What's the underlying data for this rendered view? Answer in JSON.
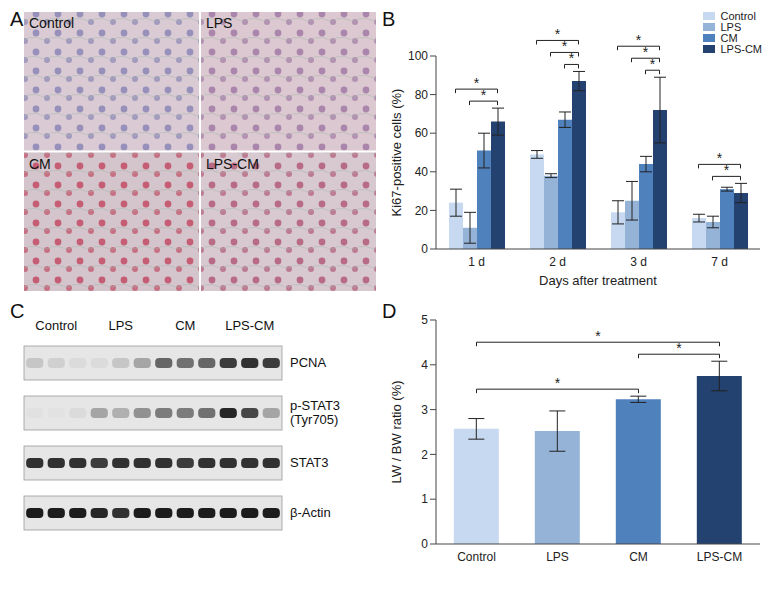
{
  "chart_data": [
    {
      "panel": "B",
      "type": "bar",
      "categories": [
        "1 d",
        "2 d",
        "3 d",
        "7 d"
      ],
      "x_label": "Days after treatment",
      "y_label": "Ki67-positive cells (%)",
      "ylim": [
        0,
        100
      ],
      "yticks": [
        0,
        20,
        40,
        60,
        80,
        100
      ],
      "legend": "top-right",
      "series": [
        {
          "name": "Control",
          "color": "#c6d9f0",
          "values": [
            24,
            49,
            19,
            16
          ],
          "errors": [
            7,
            2,
            6,
            2
          ]
        },
        {
          "name": "LPS",
          "color": "#95b3d7",
          "values": [
            11,
            38,
            25,
            14
          ],
          "errors": [
            8,
            1,
            10,
            3
          ]
        },
        {
          "name": "CM",
          "color": "#4f81bd",
          "values": [
            51,
            67,
            44,
            31
          ],
          "errors": [
            9,
            4,
            4,
            1
          ]
        },
        {
          "name": "LPS-CM",
          "color": "#24426f",
          "values": [
            66,
            87,
            72,
            29
          ],
          "errors": [
            7,
            5,
            17,
            5
          ]
        }
      ],
      "significance": [
        {
          "category": "1 d",
          "from": "Control",
          "to": "LPS-CM",
          "label": "*"
        },
        {
          "category": "1 d",
          "from": "LPS",
          "to": "LPS-CM",
          "label": "*"
        },
        {
          "category": "2 d",
          "from": "Control",
          "to": "LPS-CM",
          "label": "*"
        },
        {
          "category": "2 d",
          "from": "LPS",
          "to": "LPS-CM",
          "label": "*"
        },
        {
          "category": "2 d",
          "from": "CM",
          "to": "LPS-CM",
          "label": "*"
        },
        {
          "category": "3 d",
          "from": "Control",
          "to": "LPS-CM",
          "label": "*"
        },
        {
          "category": "3 d",
          "from": "LPS",
          "to": "LPS-CM",
          "label": "*"
        },
        {
          "category": "3 d",
          "from": "CM",
          "to": "LPS-CM",
          "label": "*"
        },
        {
          "category": "7 d",
          "from": "Control",
          "to": "LPS-CM",
          "label": "*"
        },
        {
          "category": "7 d",
          "from": "LPS",
          "to": "LPS-CM",
          "label": "*"
        }
      ]
    },
    {
      "panel": "D",
      "type": "bar",
      "categories": [
        "Control",
        "LPS",
        "CM",
        "LPS-CM"
      ],
      "values": [
        2.57,
        2.52,
        3.23,
        3.75
      ],
      "errors": [
        0.23,
        0.45,
        0.07,
        0.33
      ],
      "colors": [
        "#c6d9f0",
        "#95b3d7",
        "#4f81bd",
        "#24426f"
      ],
      "y_label": "LW / BW ratio (%)",
      "ylim": [
        0,
        5
      ],
      "yticks": [
        0,
        1,
        2,
        3,
        4,
        5
      ],
      "significance": [
        {
          "from": "Control",
          "to": "LPS-CM",
          "label": "*"
        },
        {
          "from": "Control",
          "to": "CM",
          "label": "*"
        },
        {
          "from": "CM",
          "to": "LPS-CM",
          "label": "*"
        }
      ]
    }
  ],
  "panel_a": {
    "panel": "A",
    "labels": [
      "Control",
      "LPS",
      "CM",
      "LPS-CM"
    ]
  },
  "panel_c": {
    "panel": "C",
    "groups": [
      "Control",
      "LPS",
      "CM",
      "LPS-CM"
    ],
    "rows": [
      {
        "label": "PCNA",
        "intensity": [
          0.15,
          0.1,
          0.05,
          0.05,
          0.15,
          0.3,
          0.6,
          0.55,
          0.6,
          0.8,
          0.85,
          0.8
        ]
      },
      {
        "label": "p-STAT3 (Tyr705)",
        "intensity": [
          0.02,
          0.02,
          0.05,
          0.3,
          0.25,
          0.4,
          0.5,
          0.5,
          0.55,
          0.9,
          0.75,
          0.3
        ]
      },
      {
        "label": "STAT3",
        "intensity": [
          0.85,
          0.85,
          0.85,
          0.8,
          0.85,
          0.85,
          0.85,
          0.8,
          0.85,
          0.85,
          0.85,
          0.85
        ]
      },
      {
        "label": "β-Actin",
        "intensity": [
          0.95,
          0.95,
          0.95,
          0.9,
          0.85,
          0.95,
          0.95,
          0.95,
          0.95,
          0.95,
          0.95,
          0.95
        ]
      }
    ]
  }
}
